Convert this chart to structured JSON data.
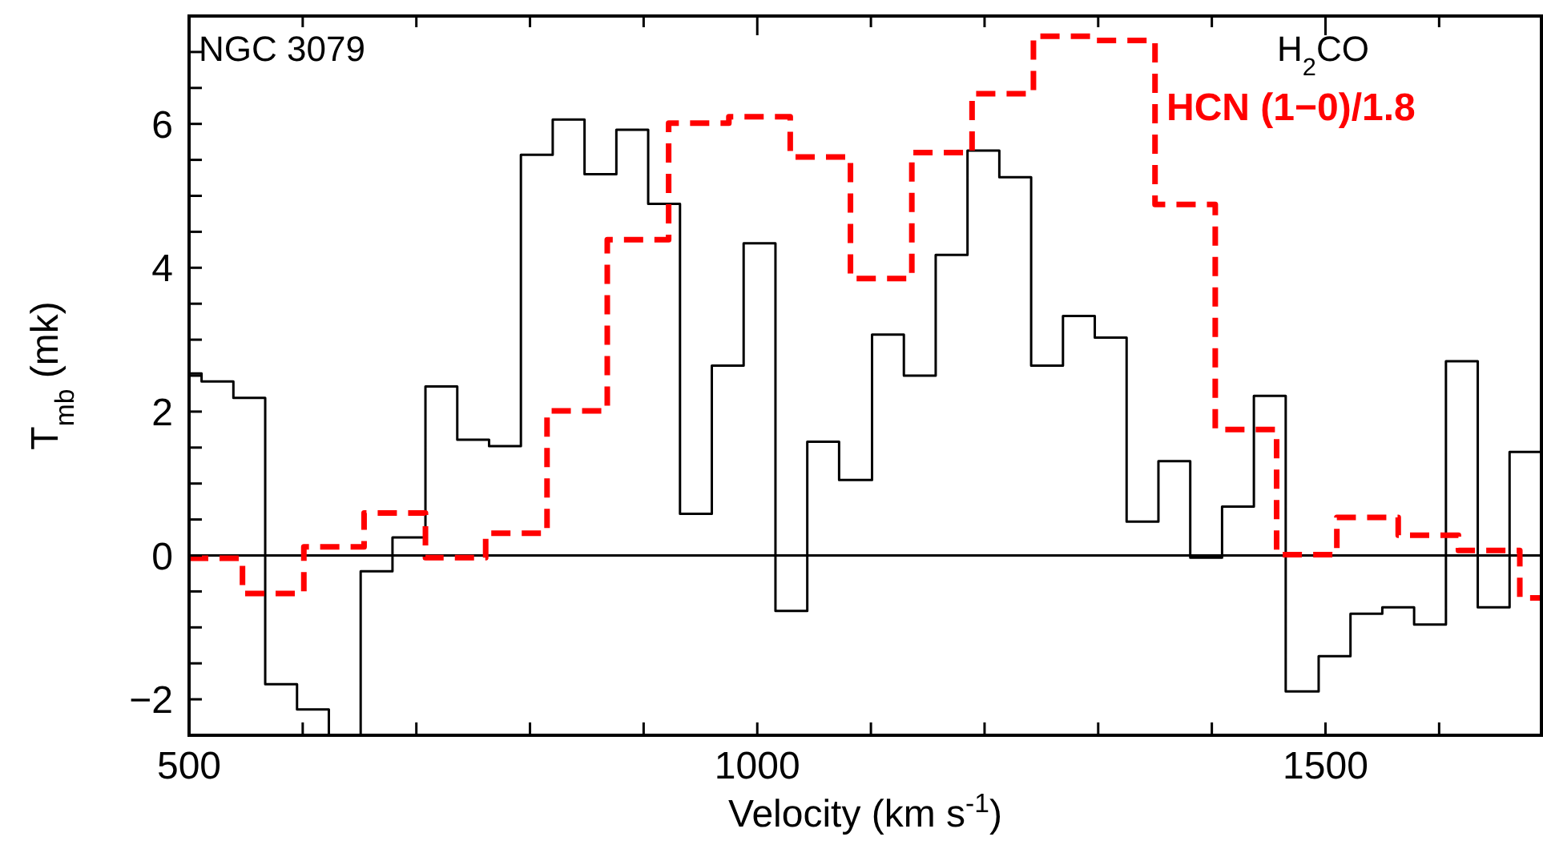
{
  "chart_data": {
    "type": "step",
    "xlabel": "Velocity (km s$^{-1}$)",
    "ylabel": "T$_{mb}$ (mk)",
    "annotations": [
      "NGC 3079"
    ],
    "xlim": [
      500,
      1690
    ],
    "ylim": [
      -2.5,
      7.5
    ],
    "xticks": [
      500,
      {
        "value": 600,
        "label": null
      },
      {
        "value": 700,
        "label": null
      },
      {
        "value": 800,
        "label": null
      },
      {
        "value": 900,
        "label": null
      },
      1000,
      {
        "value": 1100,
        "label": null
      },
      {
        "value": 1200,
        "label": null
      },
      {
        "value": 1300,
        "label": null
      },
      {
        "value": 1400,
        "label": null
      },
      1500,
      {
        "value": 1600,
        "label": null
      }
    ],
    "yticks": [
      -2,
      {
        "value": -1.5,
        "label": null
      },
      {
        "value": -1,
        "label": null
      },
      {
        "value": -0.5,
        "label": null
      },
      0,
      {
        "value": 0.5,
        "label": null
      },
      {
        "value": 1,
        "label": null
      },
      {
        "value": 1.5,
        "label": null
      },
      2,
      {
        "value": 2.5,
        "label": null
      },
      {
        "value": 3,
        "label": null
      },
      {
        "value": 3.5,
        "label": null
      },
      4,
      {
        "value": 4.5,
        "label": null
      },
      {
        "value": 5,
        "label": null
      },
      {
        "value": 5.5,
        "label": null
      },
      6,
      {
        "value": 6.5,
        "label": null
      },
      {
        "value": 7,
        "label": null
      }
    ],
    "legend": "top right",
    "ref_lines": [
      {
        "axis": "y",
        "value": 0,
        "color": "#000000",
        "line_style": "solid"
      }
    ],
    "series": [
      {
        "name": "H$_{2}$CO",
        "color": "#000000",
        "line_style": "solid",
        "x": [
          500,
          511,
          539,
          567,
          595,
          623,
          651,
          679,
          708,
          736,
          764,
          792,
          820,
          848,
          876,
          904,
          932,
          960,
          988,
          1016,
          1044,
          1072,
          1101,
          1129,
          1157,
          1185,
          1213,
          1241,
          1269,
          1297,
          1325,
          1353,
          1381,
          1409,
          1437,
          1465,
          1494,
          1522,
          1550,
          1578,
          1606,
          1634,
          1662,
          1690
        ],
        "values": [
          2.53,
          2.42,
          2.19,
          -1.79,
          -2.14,
          -2.5,
          -0.22,
          0.25,
          2.35,
          1.61,
          1.52,
          5.57,
          6.06,
          5.3,
          5.92,
          4.89,
          0.58,
          2.64,
          4.34,
          -0.77,
          1.58,
          1.05,
          3.07,
          2.5,
          4.18,
          5.63,
          5.26,
          2.64,
          3.33,
          3.03,
          0.47,
          1.31,
          -0.03,
          0.68,
          2.22,
          -1.89,
          -1.4,
          -0.81,
          -0.72,
          -0.96,
          2.7,
          -0.72,
          1.44,
          2.66
        ]
      },
      {
        "name": "HCN (1−0)/1.8",
        "color": "#ff0000",
        "line_style": "dashed",
        "x": [
          500,
          547,
          601,
          654,
          708,
          761,
          815,
          868,
          922,
          975,
          1029,
          1082,
          1136,
          1189,
          1243,
          1296,
          1350,
          1403,
          1457,
          1510,
          1564,
          1617,
          1671,
          1690
        ],
        "values": [
          -0.04,
          -0.53,
          0.12,
          0.59,
          -0.03,
          0.31,
          2.01,
          4.39,
          6.01,
          6.1,
          5.54,
          3.85,
          5.6,
          6.42,
          7.22,
          7.16,
          4.88,
          1.75,
          0.01,
          0.53,
          0.28,
          0.07,
          -0.59,
          -0.59
        ]
      }
    ]
  }
}
